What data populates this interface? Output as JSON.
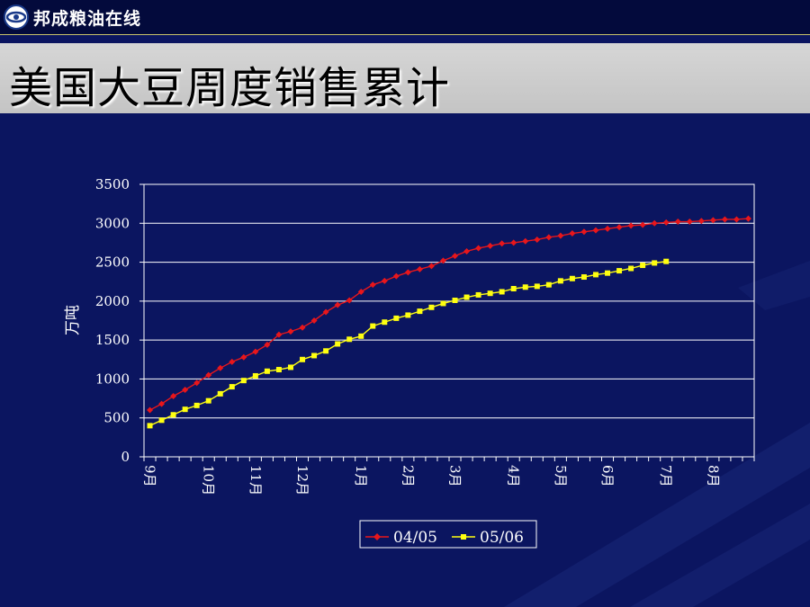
{
  "header": {
    "brand": "邦成粮油在线"
  },
  "slide": {
    "title": "美国大豆周度销售累计"
  },
  "colors": {
    "background": "#0b1560",
    "series1": "#e8161b",
    "series2": "#ffff10",
    "grid": "#ffffff"
  },
  "chart_data": {
    "type": "line",
    "title": "",
    "ylabel": "万吨",
    "xlabel": "",
    "ylim": [
      0,
      3500
    ],
    "yticks": [
      0,
      500,
      1000,
      1500,
      2000,
      2500,
      3000,
      3500
    ],
    "xlim": [
      0,
      52
    ],
    "grid": true,
    "legend_position": "bottom",
    "x_tick_labels": [
      {
        "label": "9月",
        "x": 0.5
      },
      {
        "label": "10月",
        "x": 5.5
      },
      {
        "label": "11月",
        "x": 9.5
      },
      {
        "label": "12月",
        "x": 13.5
      },
      {
        "label": "1月",
        "x": 18.5
      },
      {
        "label": "2月",
        "x": 22.5
      },
      {
        "label": "3月",
        "x": 26.5
      },
      {
        "label": "4月",
        "x": 31.5
      },
      {
        "label": "5月",
        "x": 35.5
      },
      {
        "label": "6月",
        "x": 39.5
      },
      {
        "label": "7月",
        "x": 44.5
      },
      {
        "label": "8月",
        "x": 48.5
      }
    ],
    "series": [
      {
        "name": "04/05",
        "marker": "diamond",
        "color": "#e8161b",
        "values": [
          600,
          680,
          780,
          860,
          950,
          1050,
          1140,
          1220,
          1280,
          1350,
          1440,
          1570,
          1610,
          1660,
          1750,
          1860,
          1950,
          2010,
          2120,
          2210,
          2260,
          2320,
          2370,
          2410,
          2450,
          2520,
          2580,
          2640,
          2680,
          2710,
          2740,
          2750,
          2770,
          2790,
          2820,
          2840,
          2870,
          2890,
          2910,
          2930,
          2950,
          2970,
          2980,
          3000,
          3010,
          3020,
          3020,
          3030,
          3040,
          3050,
          3050,
          3060
        ]
      },
      {
        "name": "05/06",
        "marker": "square",
        "color": "#ffff10",
        "values": [
          400,
          470,
          540,
          610,
          660,
          720,
          810,
          900,
          980,
          1040,
          1100,
          1120,
          1150,
          1250,
          1300,
          1360,
          1450,
          1510,
          1550,
          1680,
          1730,
          1780,
          1820,
          1870,
          1920,
          1970,
          2010,
          2050,
          2080,
          2100,
          2120,
          2160,
          2180,
          2190,
          2210,
          2260,
          2290,
          2310,
          2340,
          2360,
          2390,
          2420,
          2460,
          2490,
          2510
        ]
      }
    ]
  }
}
